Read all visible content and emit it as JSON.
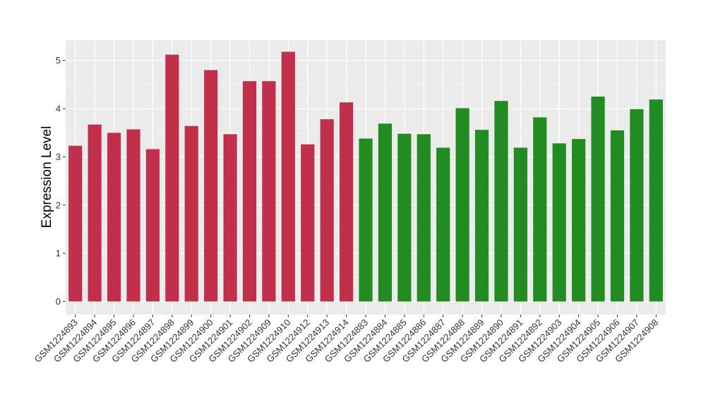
{
  "chart_data": {
    "type": "bar",
    "title": "",
    "xlabel": "",
    "ylabel": "Expression Level",
    "ylim": [
      0,
      5.4
    ],
    "yticks": [
      0,
      1,
      2,
      3,
      4,
      5
    ],
    "grid": true,
    "legend": "none",
    "categories": [
      "GSM1224893",
      "GSM1224894",
      "GSM1224895",
      "GSM1224896",
      "GSM1224897",
      "GSM1224898",
      "GSM1224899",
      "GSM1224900",
      "GSM1224901",
      "GSM1224902",
      "GSM1224909",
      "GSM1224910",
      "GSM1224912",
      "GSM1224913",
      "GSM1224914",
      "GSM1224883",
      "GSM1224884",
      "GSM1224885",
      "GSM1224886",
      "GSM1224887",
      "GSM1224888",
      "GSM1224889",
      "GSM1224890",
      "GSM1224891",
      "GSM1224892",
      "GSM1224903",
      "GSM1224904",
      "GSM1224905",
      "GSM1224906",
      "GSM1224907",
      "GSM1224908"
    ],
    "values": [
      3.23,
      3.67,
      3.5,
      3.57,
      3.16,
      5.12,
      3.64,
      4.8,
      3.47,
      4.57,
      4.57,
      5.18,
      3.26,
      3.78,
      4.13,
      3.38,
      3.69,
      3.48,
      3.47,
      3.19,
      4.01,
      3.56,
      4.16,
      3.19,
      3.82,
      3.28,
      3.37,
      4.25,
      3.55,
      3.99,
      4.19
    ],
    "groups": [
      "a",
      "a",
      "a",
      "a",
      "a",
      "a",
      "a",
      "a",
      "a",
      "a",
      "a",
      "a",
      "a",
      "a",
      "a",
      "b",
      "b",
      "b",
      "b",
      "b",
      "b",
      "b",
      "b",
      "b",
      "b",
      "b",
      "b",
      "b",
      "b",
      "b",
      "b"
    ],
    "colors": {
      "a": "#c0304a",
      "b": "#228b22"
    },
    "panel_background": "#ebebeb",
    "gridline_color": "#ffffff"
  }
}
